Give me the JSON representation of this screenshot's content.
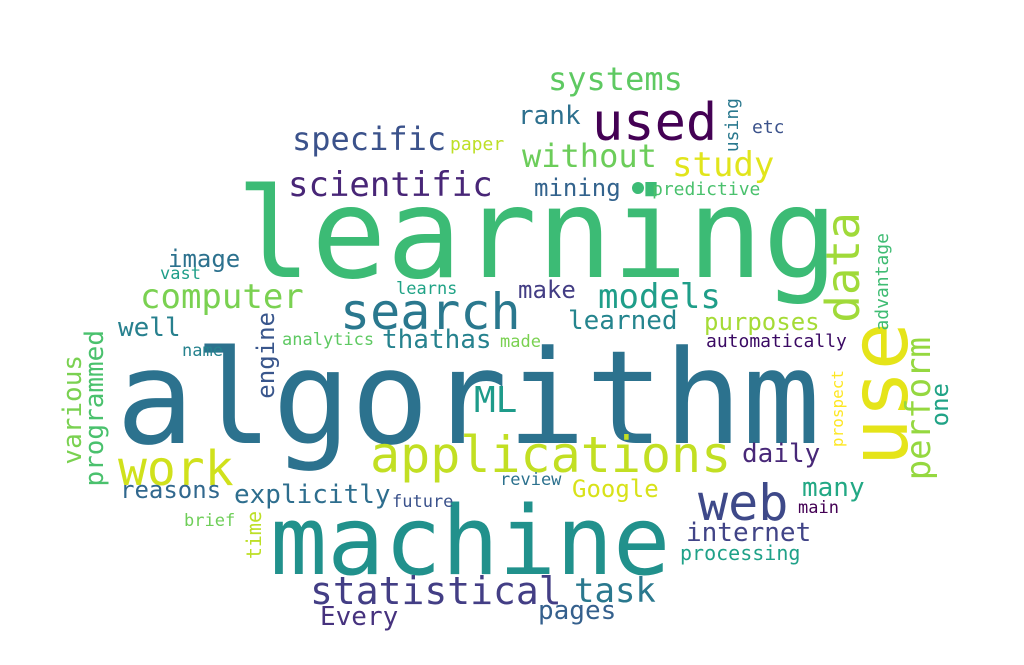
{
  "words": [
    {
      "text": "algorithm",
      "color": "#2c728e"
    },
    {
      "text": "learning",
      "color": "#3cbb75"
    },
    {
      "text": "machine",
      "color": "#21918c"
    },
    {
      "text": "use",
      "color": "#e5e419"
    },
    {
      "text": "applications",
      "color": "#c2df23"
    },
    {
      "text": "web",
      "color": "#3e4989"
    },
    {
      "text": "search",
      "color": "#2a788e"
    },
    {
      "text": "used",
      "color": "#440154"
    },
    {
      "text": "data",
      "color": "#a0da39"
    },
    {
      "text": "work",
      "color": "#d0e11c"
    },
    {
      "text": "statistical",
      "color": "#433e85"
    },
    {
      "text": "scientific",
      "color": "#482677"
    },
    {
      "text": "computer",
      "color": "#7ad151"
    },
    {
      "text": "models",
      "color": "#1f9e89"
    },
    {
      "text": "systems",
      "color": "#5ec962"
    },
    {
      "text": "specific",
      "color": "#3b528b"
    },
    {
      "text": "study",
      "color": "#e1e51c"
    },
    {
      "text": "without",
      "color": "#6ccd5a"
    },
    {
      "text": "perform",
      "color": "#95d840"
    },
    {
      "text": "ML",
      "color": "#1e9b8a"
    },
    {
      "text": "task",
      "color": "#2a788e"
    },
    {
      "text": "internet",
      "color": "#414487"
    },
    {
      "text": "explicitly",
      "color": "#2e6e8e"
    },
    {
      "text": "reasons",
      "color": "#31688e"
    },
    {
      "text": "Google",
      "color": "#d8e219"
    },
    {
      "text": "daily",
      "color": "#482878"
    },
    {
      "text": "many",
      "color": "#22a884"
    },
    {
      "text": "pages",
      "color": "#35608d"
    },
    {
      "text": "Every",
      "color": "#46327e"
    },
    {
      "text": "thathas",
      "color": "#26828e"
    },
    {
      "text": "learned",
      "color": "#25858e"
    },
    {
      "text": "purposes",
      "color": "#a5db36"
    },
    {
      "text": "make",
      "color": "#433d84"
    },
    {
      "text": "image",
      "color": "#2c718e"
    },
    {
      "text": "well",
      "color": "#27808e"
    },
    {
      "text": "rank",
      "color": "#2d708e"
    },
    {
      "text": "mining",
      "color": "#33638d"
    },
    {
      "text": "programmed",
      "color": "#4ac16d"
    },
    {
      "text": "various",
      "color": "#7ad151"
    },
    {
      "text": "engine",
      "color": "#39568c"
    },
    {
      "text": "one",
      "color": "#20a386"
    },
    {
      "text": "time",
      "color": "#bddf26"
    },
    {
      "text": "processing",
      "color": "#1fa188"
    },
    {
      "text": "automatically",
      "color": "#3a0963"
    },
    {
      "text": "analytics",
      "color": "#5ec962"
    },
    {
      "text": "advantage",
      "color": "#3fbc73"
    },
    {
      "text": "prospect",
      "color": "#fde725"
    },
    {
      "text": "predictive",
      "color": "#4ac16d"
    },
    {
      "text": "paper",
      "color": "#bddf26"
    },
    {
      "text": "using",
      "color": "#2a788e"
    },
    {
      "text": "etc",
      "color": "#3b528b"
    },
    {
      "text": "vast",
      "color": "#1f9e89"
    },
    {
      "text": "name",
      "color": "#26828e"
    },
    {
      "text": "learns",
      "color": "#20a386"
    },
    {
      "text": "made",
      "color": "#7ad151"
    },
    {
      "text": "brief",
      "color": "#6ece58"
    },
    {
      "text": "future",
      "color": "#3b528b"
    },
    {
      "text": "review",
      "color": "#2c718e"
    },
    {
      "text": "main",
      "color": "#440154"
    }
  ]
}
